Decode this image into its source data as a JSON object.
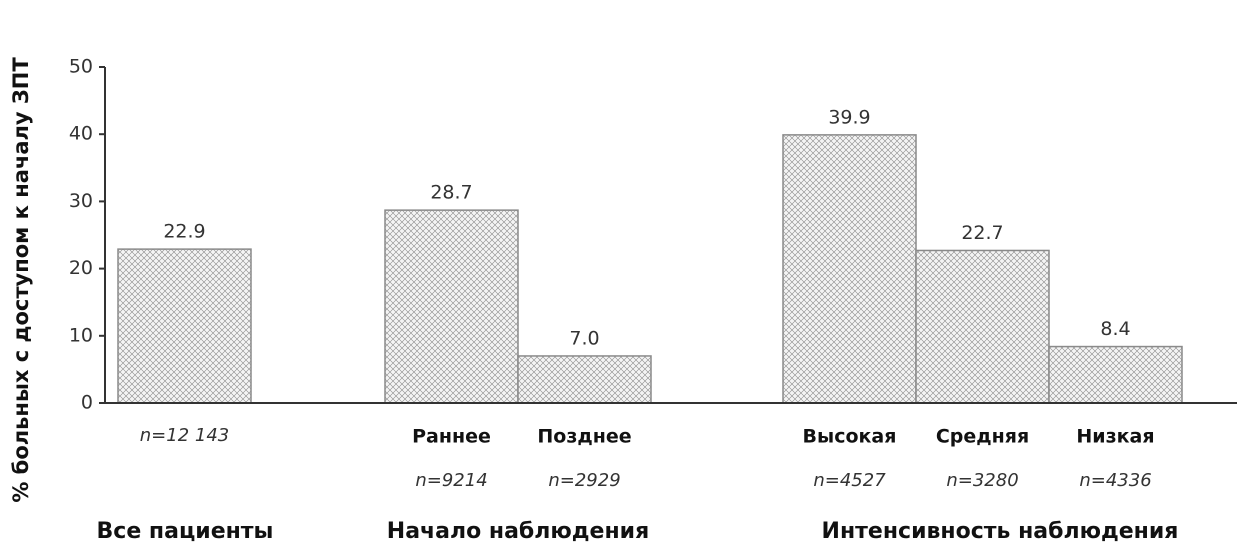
{
  "chart_data": {
    "type": "bar",
    "y_label": "% больных с доступом к началу ЗПТ",
    "ylim": [
      0,
      50
    ],
    "yticks": [
      0,
      10,
      20,
      30,
      40,
      50
    ],
    "color": "#8a8a8a",
    "groups": [
      {
        "name": "Все пациенты",
        "categories": [
          null
        ],
        "values": [
          22.9
        ],
        "value_labels": [
          "22.9"
        ],
        "n_labels": [
          "n=12 143"
        ]
      },
      {
        "name": "Начало наблюдения",
        "categories": [
          "Раннее",
          "Позднее"
        ],
        "values": [
          28.7,
          7.0
        ],
        "value_labels": [
          "28.7",
          "7.0"
        ],
        "n_labels": [
          "n=9214",
          "n=2929"
        ]
      },
      {
        "name": "Интенсивность наблюдения",
        "categories": [
          "Высокая",
          "Средняя",
          "Низкая"
        ],
        "values": [
          39.9,
          22.7,
          8.4
        ],
        "value_labels": [
          "39.9",
          "22.7",
          "8.4"
        ],
        "n_labels": [
          "n=4527",
          "n=3280",
          "n=4336"
        ]
      }
    ]
  }
}
